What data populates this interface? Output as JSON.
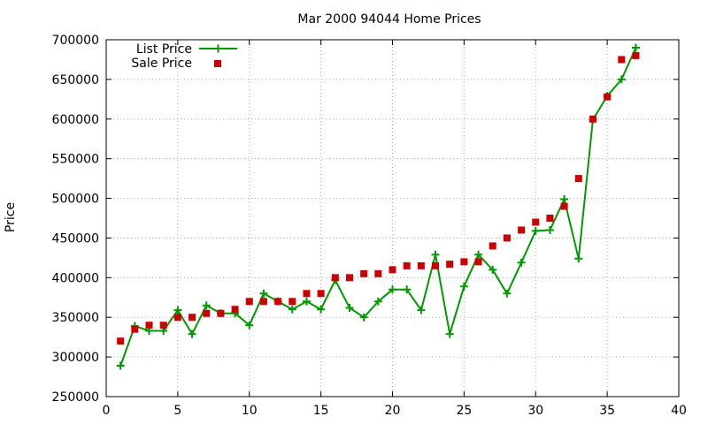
{
  "chart_data": {
    "type": "line",
    "title": "Mar 2000 94044 Home Prices",
    "xlabel": "",
    "ylabel": "Price",
    "xlim": [
      0,
      40
    ],
    "ylim": [
      250000,
      700000
    ],
    "x_ticks": [
      0,
      5,
      10,
      15,
      20,
      25,
      30,
      35,
      40
    ],
    "y_ticks": [
      250000,
      300000,
      350000,
      400000,
      450000,
      500000,
      550000,
      600000,
      650000,
      700000
    ],
    "grid": true,
    "legend_position": "top-left",
    "series": [
      {
        "name": "List Price",
        "style": "lines-and-points",
        "color": "#009900",
        "marker": "plus",
        "x": [
          1,
          2,
          3,
          4,
          5,
          6,
          7,
          8,
          9,
          10,
          11,
          12,
          13,
          14,
          15,
          16,
          17,
          18,
          19,
          20,
          21,
          22,
          23,
          24,
          25,
          26,
          27,
          28,
          29,
          30,
          31,
          32,
          33,
          34,
          35,
          36,
          37
        ],
        "y": [
          289000,
          339000,
          333000,
          333000,
          359000,
          329000,
          365000,
          355000,
          355000,
          340000,
          380000,
          370000,
          360000,
          370000,
          360000,
          397000,
          362000,
          350000,
          370000,
          385000,
          385000,
          359000,
          429000,
          329000,
          389000,
          429000,
          410000,
          380000,
          419000,
          459000,
          460000,
          499000,
          424000,
          599000,
          629000,
          650000,
          690000
        ]
      },
      {
        "name": "Sale Price",
        "style": "points",
        "color": "#cc0000",
        "marker": "square",
        "x": [
          1,
          2,
          3,
          4,
          5,
          6,
          7,
          8,
          9,
          10,
          11,
          12,
          13,
          14,
          15,
          16,
          17,
          18,
          19,
          20,
          21,
          22,
          23,
          24,
          25,
          26,
          27,
          28,
          29,
          30,
          31,
          32,
          33,
          34,
          35,
          36,
          37
        ],
        "y": [
          320000,
          335000,
          340000,
          340000,
          350000,
          350000,
          355000,
          355000,
          360000,
          370000,
          370000,
          370000,
          370000,
          380000,
          380000,
          400000,
          400000,
          405000,
          405000,
          410000,
          415000,
          415000,
          415000,
          417000,
          420000,
          420000,
          440000,
          450000,
          460000,
          470000,
          475000,
          490000,
          525000,
          600000,
          628000,
          675000,
          680000
        ]
      }
    ]
  }
}
